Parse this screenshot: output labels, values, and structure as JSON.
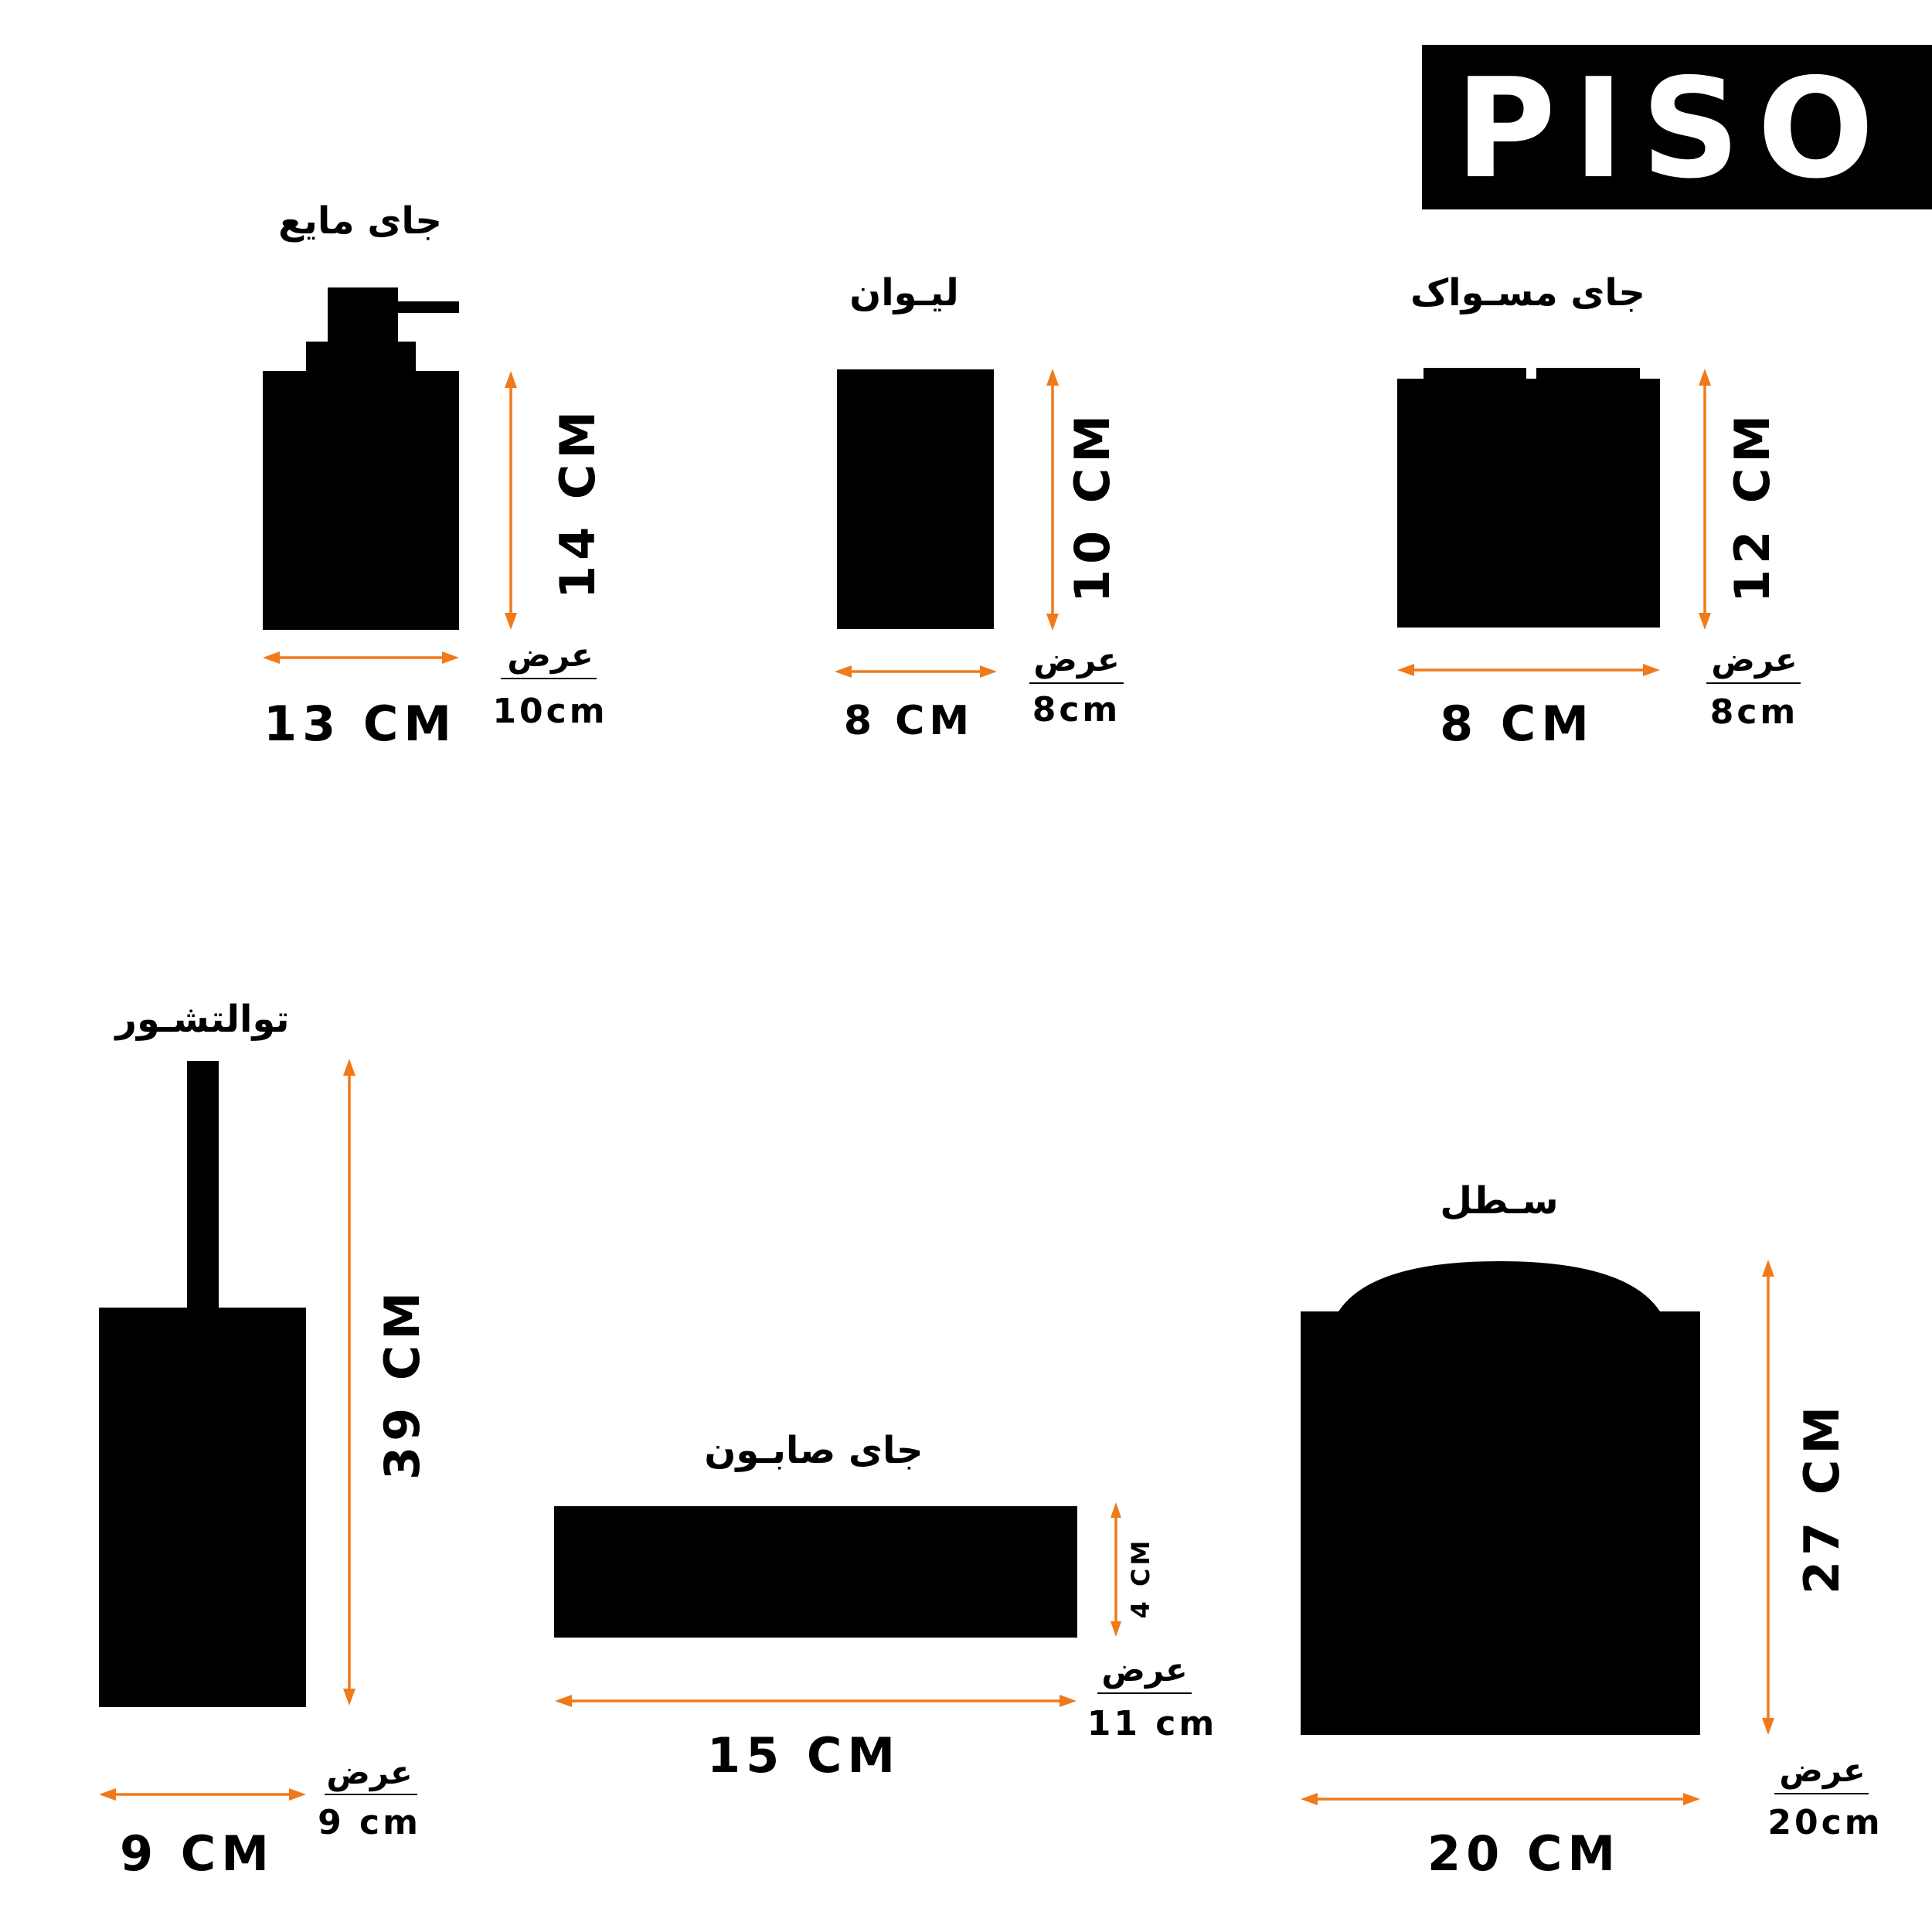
{
  "brand": {
    "name": "PISO",
    "bg": "#000000",
    "fg": "#ffffff"
  },
  "colors": {
    "shape": "#000000",
    "arrow": "#f07a1a"
  },
  "width_label": "عرض",
  "items": [
    {
      "title": "جای مایع",
      "height": "14 CM",
      "length": "13 CM",
      "width": "10cm"
    },
    {
      "title": "لیـوان",
      "height": "10 CM",
      "length": "8 CM",
      "width": "8cm"
    },
    {
      "title": "جای مسـواک",
      "height": "12 CM",
      "length": "8 CM",
      "width": "8cm"
    },
    {
      "title": "توالتشـور",
      "height": "39 CM",
      "length": "9 CM",
      "width": "9 cm"
    },
    {
      "title": "جای صابـون",
      "height": "4 CM",
      "length": "15 CM",
      "width": "11 cm"
    },
    {
      "title": "سـطل",
      "height": "27 CM",
      "length": "20 CM",
      "width": "20cm"
    }
  ]
}
